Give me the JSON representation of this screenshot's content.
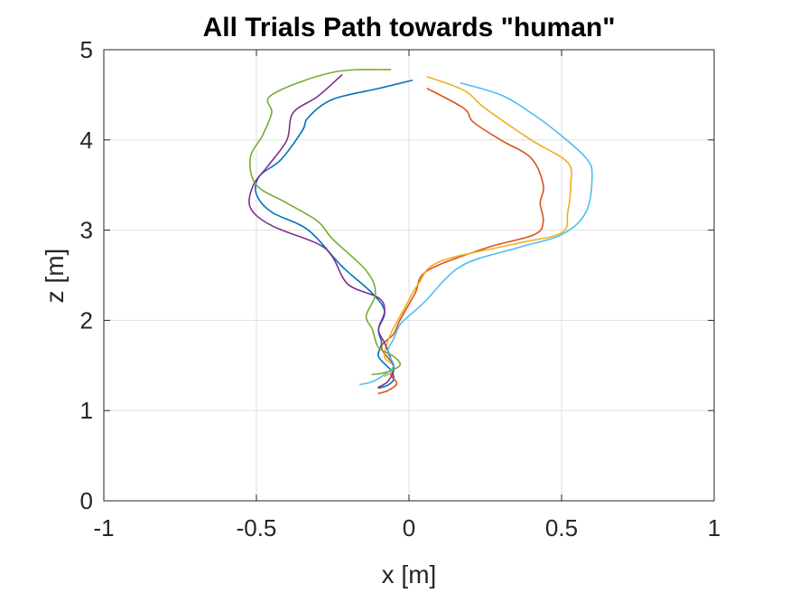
{
  "chart_data": {
    "type": "line",
    "title": "All Trials Path towards \"human\"",
    "xlabel": "x [m]",
    "ylabel": "z [m]",
    "xlim": [
      -1,
      1
    ],
    "ylim": [
      0,
      5
    ],
    "xticks": [
      -1,
      -0.5,
      0,
      0.5,
      1
    ],
    "xtick_labels": [
      "-1",
      "-0.5",
      "0",
      "0.5",
      "1"
    ],
    "yticks": [
      0,
      1,
      2,
      3,
      4,
      5
    ],
    "ytick_labels": [
      "0",
      "1",
      "2",
      "3",
      "4",
      "5"
    ],
    "grid": true,
    "legend": false,
    "series": [
      {
        "color": "#0072BD",
        "x": [
          0.01,
          -0.1,
          -0.25,
          -0.33,
          -0.35,
          -0.42,
          -0.49,
          -0.5,
          -0.45,
          -0.33,
          -0.22,
          -0.12,
          -0.08,
          -0.1,
          -0.09,
          -0.1,
          -0.06,
          -0.05,
          -0.07,
          -0.1
        ],
        "y": [
          4.66,
          4.57,
          4.45,
          4.25,
          4.1,
          3.78,
          3.6,
          3.4,
          3.2,
          3.0,
          2.6,
          2.3,
          2.1,
          1.9,
          1.75,
          1.6,
          1.45,
          1.35,
          1.28,
          1.25
        ]
      },
      {
        "color": "#D95319",
        "x": [
          0.06,
          0.18,
          0.21,
          0.3,
          0.4,
          0.44,
          0.43,
          0.44,
          0.41,
          0.25,
          0.06,
          0.02,
          -0.03,
          -0.05,
          -0.09,
          -0.05,
          -0.06,
          -0.04,
          -0.07,
          -0.1
        ],
        "y": [
          4.57,
          4.35,
          4.2,
          4.0,
          3.8,
          3.5,
          3.3,
          3.1,
          2.95,
          2.8,
          2.55,
          2.3,
          2.0,
          1.85,
          1.7,
          1.5,
          1.4,
          1.3,
          1.22,
          1.19
        ]
      },
      {
        "color": "#EDB120",
        "x": [
          0.06,
          0.18,
          0.25,
          0.4,
          0.52,
          0.53,
          0.52,
          0.5,
          0.35,
          0.1,
          0.03,
          -0.02,
          -0.06,
          -0.08,
          -0.05,
          -0.06,
          -0.08
        ],
        "y": [
          4.7,
          4.55,
          4.35,
          4.0,
          3.75,
          3.5,
          3.2,
          2.97,
          2.85,
          2.65,
          2.4,
          2.1,
          1.85,
          1.6,
          1.5,
          1.42,
          1.38
        ]
      },
      {
        "color": "#7E2F8E",
        "x": [
          -0.22,
          -0.3,
          -0.38,
          -0.4,
          -0.46,
          -0.51,
          -0.52,
          -0.45,
          -0.3,
          -0.25,
          -0.2,
          -0.1,
          -0.08,
          -0.1,
          -0.08,
          -0.06,
          -0.05,
          -0.07,
          -0.1
        ],
        "y": [
          4.72,
          4.48,
          4.3,
          4.0,
          3.72,
          3.5,
          3.25,
          3.05,
          2.85,
          2.7,
          2.4,
          2.25,
          2.1,
          1.9,
          1.75,
          1.58,
          1.45,
          1.32,
          1.26
        ]
      },
      {
        "color": "#77AC30",
        "x": [
          -0.06,
          -0.25,
          -0.45,
          -0.45,
          -0.48,
          -0.52,
          -0.5,
          -0.4,
          -0.3,
          -0.25,
          -0.14,
          -0.11,
          -0.14,
          -0.12,
          -0.1,
          -0.05,
          -0.03,
          -0.08,
          -0.12
        ],
        "y": [
          4.78,
          4.75,
          4.5,
          4.3,
          4.05,
          3.8,
          3.5,
          3.3,
          3.1,
          2.9,
          2.55,
          2.3,
          2.05,
          1.9,
          1.7,
          1.6,
          1.5,
          1.42,
          1.4
        ]
      },
      {
        "color": "#4DBEEE",
        "x": [
          0.17,
          0.3,
          0.4,
          0.48,
          0.58,
          0.6,
          0.58,
          0.5,
          0.35,
          0.17,
          0.05,
          0.0,
          -0.03,
          -0.05,
          -0.07,
          -0.05,
          -0.08,
          -0.12,
          -0.16
        ],
        "y": [
          4.63,
          4.5,
          4.3,
          4.1,
          3.8,
          3.6,
          3.2,
          2.95,
          2.8,
          2.6,
          2.2,
          2.05,
          1.95,
          1.8,
          1.65,
          1.5,
          1.4,
          1.32,
          1.29
        ]
      }
    ]
  }
}
